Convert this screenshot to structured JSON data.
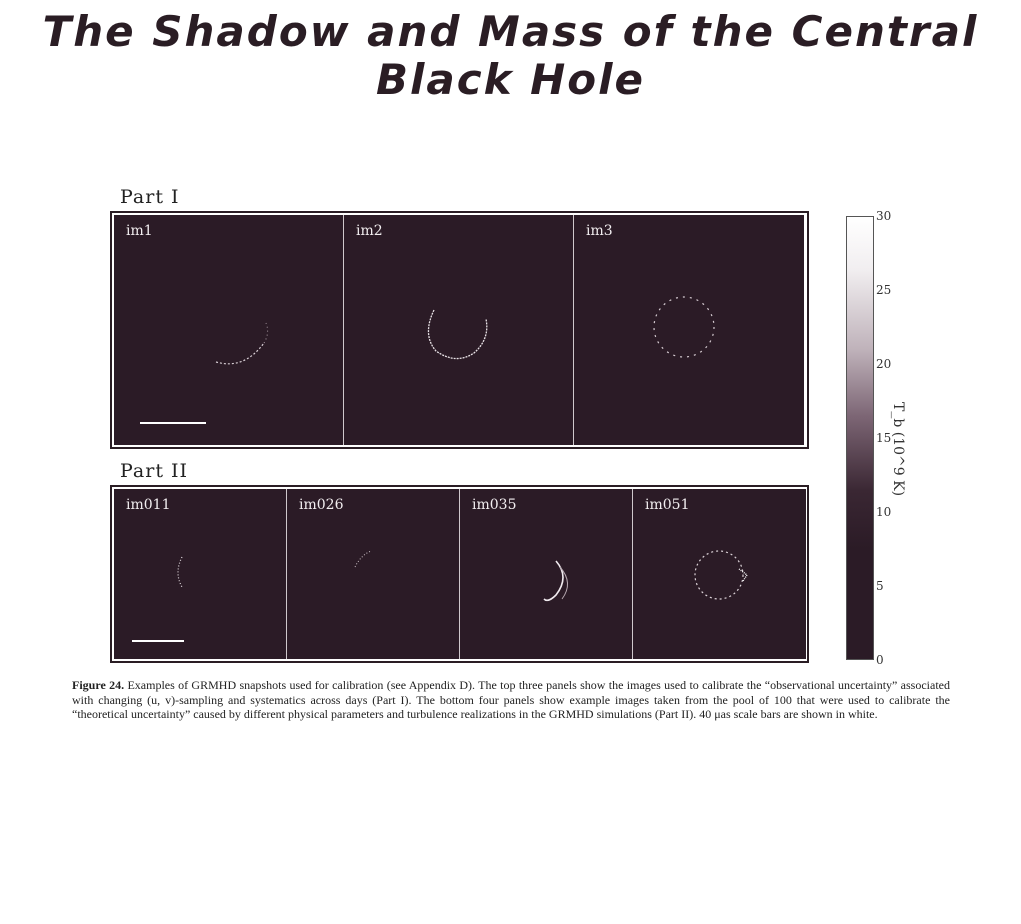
{
  "title": "The Shadow and Mass of the Central Black Hole",
  "figure": {
    "part1": {
      "label": "Part I",
      "panels": [
        "im1",
        "im2",
        "im3"
      ]
    },
    "part2": {
      "label": "Part II",
      "panels": [
        "im011",
        "im026",
        "im035",
        "im051"
      ]
    },
    "colorbar": {
      "label": "T_b (10^9 K)",
      "ticks": [
        "30",
        "25",
        "20",
        "15",
        "10",
        "5",
        "0"
      ]
    }
  },
  "caption": {
    "figure_number": "Figure 24.",
    "text": "Examples of GRMHD snapshots used for calibration (see Appendix D). The top three panels show the images used to calibrate the “observational uncertainty” associated with changing (u, v)-sampling and systematics across days (Part I). The bottom four panels show example images taken from the pool of 100 that were used to calibrate the “theoretical uncertainty” caused by different physical parameters and turbulence realizations in the GRMHD simulations (Part II). 40 μas scale bars are shown in white."
  }
}
